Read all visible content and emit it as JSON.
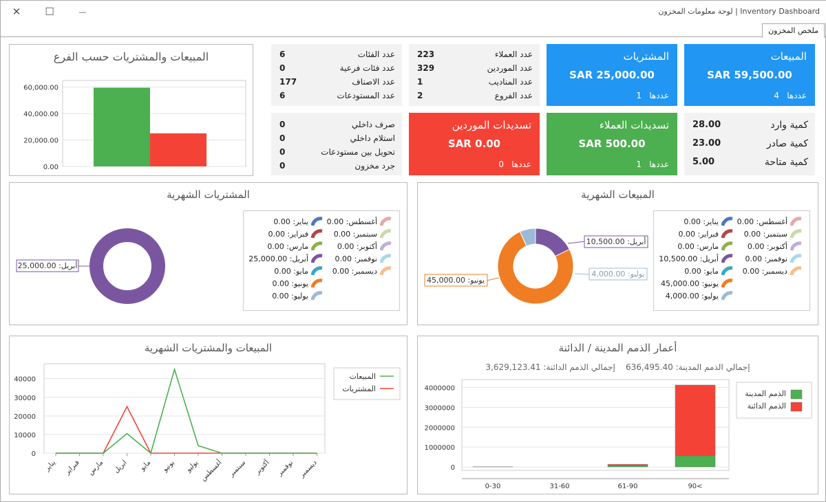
{
  "window": {
    "title": "Inventory Dashboard | لوحة معلومات المخزون",
    "close_glyph": "✕",
    "maximize_glyph": "☐",
    "minimize_glyph": "—"
  },
  "tab": {
    "label": "ملخص المخزون"
  },
  "branch_chart": {
    "title": "المبيعات والمشتريات حسب الفرع",
    "chart_data": {
      "type": "bar",
      "series": [
        {
          "name": "المبيعات",
          "values": [
            59500
          ],
          "color": "#4caf50"
        },
        {
          "name": "المشتريات",
          "values": [
            25000
          ],
          "color": "#f44336"
        }
      ],
      "y_ticks": [
        "60,000.00",
        "40,000.00",
        "20,000.00",
        "0.00"
      ],
      "ylim": [
        0,
        65000
      ]
    }
  },
  "categories_box": {
    "rows": [
      {
        "label": "عدد الفئات",
        "value": "6"
      },
      {
        "label": "عدد فئات فرعية",
        "value": "0"
      },
      {
        "label": "عدد الاصناف",
        "value": "177"
      },
      {
        "label": "عدد المستودعات",
        "value": "6"
      }
    ]
  },
  "counts_box": {
    "rows": [
      {
        "label": "عدد العملاء",
        "value": "223"
      },
      {
        "label": "عدد الموردين",
        "value": "329"
      },
      {
        "label": "عدد المناديب",
        "value": "1"
      },
      {
        "label": "عدد الفروع",
        "value": "2"
      }
    ]
  },
  "purchases_card": {
    "title": "المشتريات",
    "amount": "SAR 25,000.00",
    "count_label": "عددها",
    "count": "1",
    "color": "#2196f3"
  },
  "sales_card": {
    "title": "المبيعات",
    "amount": "SAR 59,500.00",
    "count_label": "عددها",
    "count": "4",
    "color": "#2196f3"
  },
  "internal_box": {
    "rows": [
      {
        "label": "صرف داخلي",
        "value": "0"
      },
      {
        "label": "استلام داخلي",
        "value": "0"
      },
      {
        "label": "تحويل بين مستودعات",
        "value": "0"
      },
      {
        "label": "جرد مخزون",
        "value": "0"
      }
    ]
  },
  "supplier_payments_card": {
    "title": "تسديدات الموردين",
    "amount": "SAR 0.00",
    "count_label": "عددها",
    "count": "0",
    "color": "#f44336"
  },
  "customer_payments_card": {
    "title": "تسديدات العملاء",
    "amount": "SAR 500.00",
    "count_label": "عددها",
    "count": "1",
    "color": "#4caf50"
  },
  "quantity_box": {
    "rows": [
      {
        "label": "كمية وارد",
        "value": "28.00"
      },
      {
        "label": "كمية صادر",
        "value": "23.00"
      },
      {
        "label": "كمية متاحة",
        "value": "5.00"
      }
    ]
  },
  "monthly_purchases": {
    "title": "المشتريات الشهرية",
    "callout": "أبريل: 25,000.00",
    "chart_data": {
      "type": "pie",
      "labels": [
        "يناير",
        "فبراير",
        "مارس",
        "أبريل",
        "مايو",
        "يونيو",
        "يوليو",
        "أغسطس",
        "سبتمبر",
        "أكتوبر",
        "نوفمبر",
        "ديسمبر"
      ],
      "values": [
        0,
        0,
        0,
        25000,
        0,
        0,
        0,
        0,
        0,
        0,
        0,
        0
      ],
      "colors": [
        "#4a7ab8",
        "#b5454b",
        "#8fb04a",
        "#7b56a0",
        "#39a7c4",
        "#f07d23",
        "#9cbad8",
        "#e8a7a9",
        "#c9d9a8",
        "#bfb0d6",
        "#a9d9e8",
        "#f6c08c"
      ]
    },
    "legend_col1": [
      {
        "text": "يناير: 0.00",
        "color": "#4a7ab8"
      },
      {
        "text": "فبراير: 0.00",
        "color": "#b5454b"
      },
      {
        "text": "مارس: 0.00",
        "color": "#8fb04a"
      },
      {
        "text": "أبريل: 25,000.00",
        "color": "#7b56a0"
      },
      {
        "text": "مايو: 0.00",
        "color": "#39a7c4"
      },
      {
        "text": "يونيو: 0.00",
        "color": "#f07d23"
      },
      {
        "text": "يوليو: 0.00",
        "color": "#9cbad8"
      }
    ],
    "legend_col2": [
      {
        "text": "أغسطس: 0.00",
        "color": "#e8a7a9"
      },
      {
        "text": "سبتمبر: 0.00",
        "color": "#c9d9a8"
      },
      {
        "text": "أكتوبر: 0.00",
        "color": "#bfb0d6"
      },
      {
        "text": "نوفمبر: 0.00",
        "color": "#a9d9e8"
      },
      {
        "text": "ديسمبر: 0.00",
        "color": "#f6c08c"
      }
    ]
  },
  "monthly_sales": {
    "title": "المبيعات الشهرية",
    "callouts": [
      "أبريل: 10,500.00",
      "يونيو: 45,000.00",
      "يوليو: 4,000.00"
    ],
    "chart_data": {
      "type": "pie",
      "labels": [
        "يناير",
        "فبراير",
        "مارس",
        "أبريل",
        "مايو",
        "يونيو",
        "يوليو",
        "أغسطس",
        "سبتمبر",
        "أكتوبر",
        "نوفمبر",
        "ديسمبر"
      ],
      "values": [
        0,
        0,
        0,
        10500,
        0,
        45000,
        4000,
        0,
        0,
        0,
        0,
        0
      ],
      "colors": [
        "#4a7ab8",
        "#b5454b",
        "#8fb04a",
        "#7b56a0",
        "#39a7c4",
        "#f07d23",
        "#9cbad8",
        "#e8a7a9",
        "#c9d9a8",
        "#bfb0d6",
        "#a9d9e8",
        "#f6c08c"
      ]
    },
    "legend_col1": [
      {
        "text": "يناير: 0.00",
        "color": "#4a7ab8"
      },
      {
        "text": "فبراير: 0.00",
        "color": "#b5454b"
      },
      {
        "text": "مارس: 0.00",
        "color": "#8fb04a"
      },
      {
        "text": "أبريل: 10,500.00",
        "color": "#7b56a0"
      },
      {
        "text": "مايو: 0.00",
        "color": "#39a7c4"
      },
      {
        "text": "يونيو: 45,000.00",
        "color": "#f07d23"
      },
      {
        "text": "يوليو: 4,000.00",
        "color": "#9cbad8"
      }
    ],
    "legend_col2": [
      {
        "text": "أغسطس: 0.00",
        "color": "#e8a7a9"
      },
      {
        "text": "سبتمبر: 0.00",
        "color": "#c9d9a8"
      },
      {
        "text": "أكتوبر: 0.00",
        "color": "#bfb0d6"
      },
      {
        "text": "نوفمبر: 0.00",
        "color": "#a9d9e8"
      },
      {
        "text": "ديسمبر: 0.00",
        "color": "#f6c08c"
      }
    ]
  },
  "sales_purchases_line": {
    "title": "المبيعات والمشتريات الشهرية",
    "chart_data": {
      "type": "line",
      "categories": [
        "يناير",
        "فبراير",
        "مارس",
        "ابريل",
        "مايو",
        "يونيو",
        "يوليو",
        "أغسطس",
        "سبتمبر",
        "أكتوبر",
        "نوفمبر",
        "ديسمبر"
      ],
      "series": [
        {
          "name": "المبيعات",
          "values": [
            0,
            0,
            0,
            10500,
            0,
            45000,
            4000,
            0,
            0,
            0,
            0,
            0
          ],
          "color": "#4caf50"
        },
        {
          "name": "المشتريات",
          "values": [
            0,
            0,
            0,
            25000,
            0,
            0,
            0,
            0,
            0,
            0,
            0,
            0
          ],
          "color": "#f44336"
        }
      ],
      "y_ticks": [
        40000,
        30000,
        20000,
        10000,
        0
      ],
      "ylim": [
        0,
        48000
      ]
    }
  },
  "aging": {
    "title": "أعمار الذمم المدينة / الدائنة",
    "receivable_label": "إجمالي الذمم المدينة:",
    "receivable_value": "636,495.40",
    "payable_label": "إجمالي الذمم الدائنة:",
    "payable_value": "3,629,123.41",
    "chart_data": {
      "type": "bar",
      "stacked": true,
      "categories": [
        "0-30",
        "31-60",
        "61-90",
        "90<"
      ],
      "series": [
        {
          "name": "الذمم المدينة",
          "values": [
            10000,
            0,
            70000,
            556495
          ],
          "color": "#4caf50"
        },
        {
          "name": "الذمم الدائنة",
          "values": [
            0,
            0,
            60000,
            3569123
          ],
          "color": "#f44336"
        }
      ],
      "y_ticks": [
        4000000,
        3000000,
        2000000,
        1000000,
        0
      ],
      "ylim": [
        0,
        4400000
      ]
    }
  }
}
